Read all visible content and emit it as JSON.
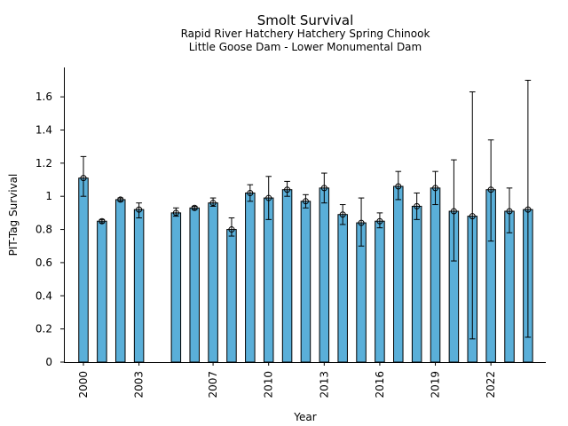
{
  "chart_data": {
    "type": "bar",
    "title": "Smolt Survival",
    "subtitle_lines": [
      "Rapid River Hatchery Hatchery Spring Chinook",
      "Little Goose Dam - Lower Monumental Dam"
    ],
    "xlabel": "Year",
    "ylabel": "PIT-Tag Survival",
    "bar_color": "#5aafd9",
    "ylim": [
      0,
      1.78
    ],
    "yticks": [
      0,
      0.2,
      0.4,
      0.6,
      0.8,
      1,
      1.2,
      1.4,
      1.6
    ],
    "ytick_labels": [
      "0",
      "0.2",
      "0.4",
      "0.6",
      "0.8",
      "1",
      "1.2",
      "1.4",
      "1.6"
    ],
    "xticks": [
      2000,
      2003,
      2007,
      2010,
      2013,
      2016,
      2019,
      2022
    ],
    "xtick_labels": [
      "2000",
      "2003",
      "2007",
      "2010",
      "2013",
      "2016",
      "2019",
      "2022"
    ],
    "grid": false,
    "bars": [
      {
        "year": 2000,
        "value": 1.11,
        "lower": 1.0,
        "upper": 1.24
      },
      {
        "year": 2001,
        "value": 0.85,
        "lower": 0.84,
        "upper": 0.86
      },
      {
        "year": 2002,
        "value": 0.98,
        "lower": 0.97,
        "upper": 0.99
      },
      {
        "year": 2003,
        "value": 0.92,
        "lower": 0.87,
        "upper": 0.96
      },
      {
        "year": 2005,
        "value": 0.9,
        "lower": 0.88,
        "upper": 0.93
      },
      {
        "year": 2006,
        "value": 0.93,
        "lower": 0.92,
        "upper": 0.94
      },
      {
        "year": 2007,
        "value": 0.96,
        "lower": 0.94,
        "upper": 0.99
      },
      {
        "year": 2008,
        "value": 0.8,
        "lower": 0.76,
        "upper": 0.87
      },
      {
        "year": 2009,
        "value": 1.02,
        "lower": 0.97,
        "upper": 1.07
      },
      {
        "year": 2010,
        "value": 0.99,
        "lower": 0.86,
        "upper": 1.12
      },
      {
        "year": 2011,
        "value": 1.04,
        "lower": 1.0,
        "upper": 1.09
      },
      {
        "year": 2012,
        "value": 0.97,
        "lower": 0.93,
        "upper": 1.01
      },
      {
        "year": 2013,
        "value": 1.05,
        "lower": 0.96,
        "upper": 1.14
      },
      {
        "year": 2014,
        "value": 0.89,
        "lower": 0.83,
        "upper": 0.95
      },
      {
        "year": 2015,
        "value": 0.84,
        "lower": 0.7,
        "upper": 0.99
      },
      {
        "year": 2016,
        "value": 0.85,
        "lower": 0.81,
        "upper": 0.9
      },
      {
        "year": 2017,
        "value": 1.06,
        "lower": 0.98,
        "upper": 1.15
      },
      {
        "year": 2018,
        "value": 0.94,
        "lower": 0.86,
        "upper": 1.02
      },
      {
        "year": 2019,
        "value": 1.05,
        "lower": 0.95,
        "upper": 1.15
      },
      {
        "year": 2020,
        "value": 0.91,
        "lower": 0.61,
        "upper": 1.22
      },
      {
        "year": 2021,
        "value": 0.88,
        "lower": 0.14,
        "upper": 1.63
      },
      {
        "year": 2022,
        "value": 1.04,
        "lower": 0.73,
        "upper": 1.34
      },
      {
        "year": 2023,
        "value": 0.91,
        "lower": 0.78,
        "upper": 1.05
      },
      {
        "year": 2024,
        "value": 0.92,
        "lower": 0.15,
        "upper": 1.7
      }
    ]
  }
}
